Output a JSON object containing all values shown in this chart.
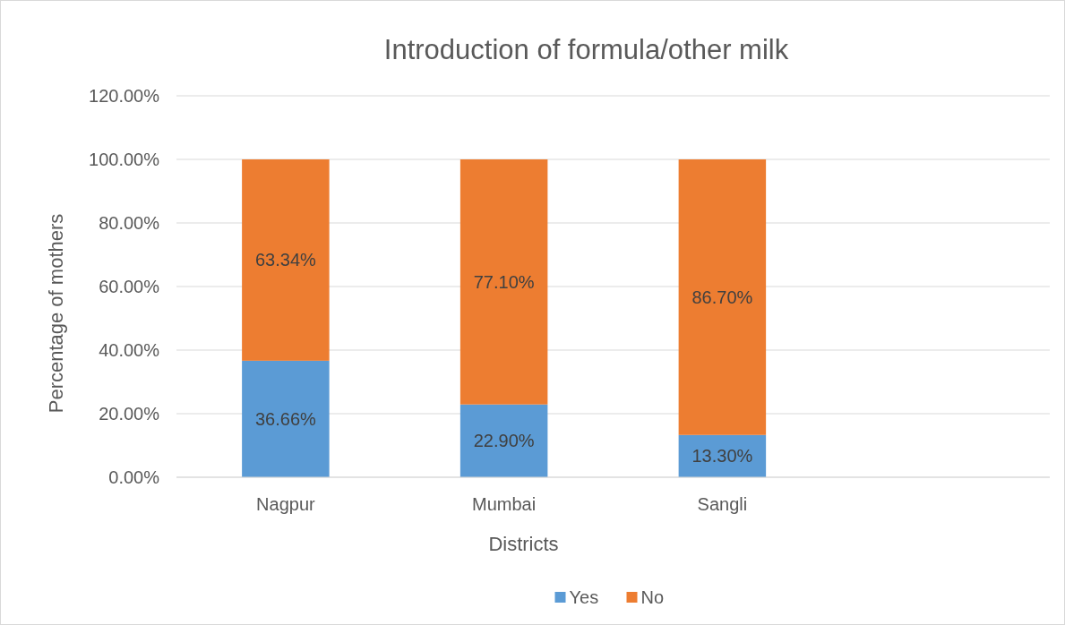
{
  "chart_data": {
    "type": "bar",
    "title": "Introduction of formula/other milk",
    "xlabel": "Districts",
    "ylabel": "Percentage of mothers",
    "categories": [
      "Nagpur",
      "Mumbai",
      "Sangli",
      null
    ],
    "series": [
      {
        "name": "Yes",
        "color": "#5b9bd5",
        "values": [
          36.66,
          22.9,
          13.3,
          null
        ],
        "value_labels": [
          "36.66%",
          "22.90%",
          "13.30%",
          null
        ]
      },
      {
        "name": "No",
        "color": "#ed7d31",
        "values": [
          63.34,
          77.1,
          86.7,
          null
        ],
        "value_labels": [
          "63.34%",
          "77.10%",
          "86.70%",
          null
        ]
      }
    ],
    "stacked": true,
    "ylim": [
      0,
      120
    ],
    "yticks": [
      {
        "value": 0,
        "label": "0.00%"
      },
      {
        "value": 20,
        "label": "20.00%"
      },
      {
        "value": 40,
        "label": "40.00%"
      },
      {
        "value": 60,
        "label": "60.00%"
      },
      {
        "value": 80,
        "label": "80.00%"
      },
      {
        "value": 100,
        "label": "100.00%"
      },
      {
        "value": 120,
        "label": "120.00%"
      }
    ],
    "grid": "y",
    "legend": "bottom"
  }
}
